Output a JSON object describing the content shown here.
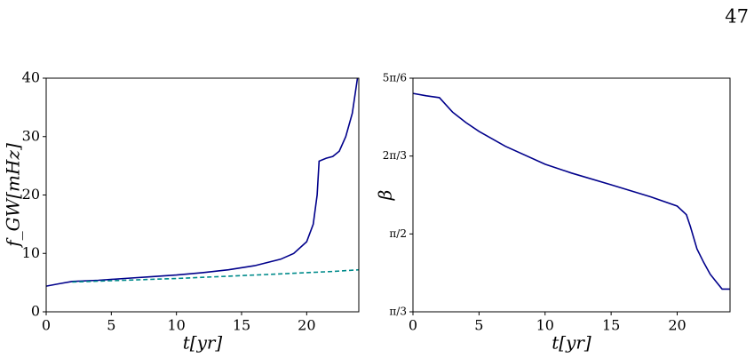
{
  "page_number": "47",
  "chart_data": [
    {
      "type": "line",
      "x_label": "t[yr]",
      "y_label": "f_GW[mHz]",
      "xlim": [
        0,
        24
      ],
      "ylim": [
        0,
        40
      ],
      "xticks": [
        0,
        5,
        10,
        15,
        20
      ],
      "yticks": [
        0,
        10,
        20,
        30,
        40
      ],
      "series": [
        {
          "color": "#00008b",
          "dash": false,
          "x": [
            0,
            1,
            2,
            4,
            6,
            8,
            10,
            12,
            14,
            16,
            18,
            19,
            20,
            20.5,
            20.8,
            20.95,
            21.5,
            22,
            22.5,
            23,
            23.5,
            23.9
          ],
          "values": [
            4.4,
            4.8,
            5.2,
            5.4,
            5.7,
            6.0,
            6.3,
            6.7,
            7.2,
            7.9,
            9.0,
            10.0,
            12.0,
            15,
            20,
            25.8,
            26.3,
            26.6,
            27.5,
            30,
            34,
            40
          ]
        },
        {
          "color": "#008b8b",
          "dash": true,
          "x": [
            2,
            6,
            10,
            14,
            18,
            22,
            24
          ],
          "values": [
            5.1,
            5.4,
            5.7,
            6.1,
            6.5,
            6.9,
            7.2
          ]
        }
      ]
    },
    {
      "type": "line",
      "x_label": "t[yr]",
      "y_label": "β",
      "xlim": [
        0,
        24
      ],
      "ylim": [
        1.0472,
        2.618
      ],
      "xticks": [
        0,
        5,
        10,
        15,
        20
      ],
      "yticks": [
        {
          "value": 1.0472,
          "label": "π/3"
        },
        {
          "value": 1.5708,
          "label": "π/2"
        },
        {
          "value": 2.0944,
          "label": "2π/3"
        },
        {
          "value": 2.618,
          "label": "5π/6"
        }
      ],
      "series": [
        {
          "color": "#00008b",
          "dash": false,
          "x": [
            0,
            1,
            2,
            3,
            4,
            5,
            7,
            10,
            12,
            15,
            18,
            20,
            20.7,
            21,
            21.5,
            22,
            22.5,
            23,
            23.4,
            24
          ],
          "values": [
            2.516,
            2.5,
            2.487,
            2.39,
            2.32,
            2.26,
            2.16,
            2.039,
            1.98,
            1.901,
            1.82,
            1.758,
            1.7,
            1.62,
            1.47,
            1.38,
            1.3,
            1.244,
            1.2,
            1.2
          ]
        }
      ]
    }
  ]
}
